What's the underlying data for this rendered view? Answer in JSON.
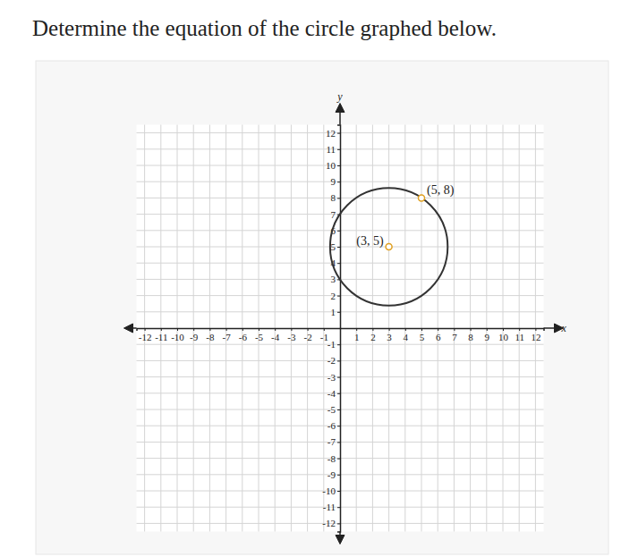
{
  "chart_data": {
    "type": "circle",
    "title": "Determine the equation of the circle graphed below.",
    "x_label": "x",
    "y_label": "y",
    "xlim": [
      -12.5,
      12.5
    ],
    "ylim": [
      -12.5,
      12.5
    ],
    "xticks": [
      -12,
      -11,
      -10,
      -9,
      -8,
      -7,
      -6,
      -5,
      -4,
      -3,
      -2,
      -1,
      1,
      2,
      3,
      4,
      5,
      6,
      7,
      8,
      9,
      10,
      11,
      12
    ],
    "yticks": [
      -12,
      -11,
      -10,
      -9,
      -8,
      -7,
      -6,
      -5,
      -4,
      -3,
      -2,
      -1,
      1,
      2,
      3,
      4,
      5,
      6,
      7,
      8,
      9,
      10,
      11,
      12
    ],
    "grid": true,
    "circle": {
      "cx": 3,
      "cy": 5,
      "r": 3.61,
      "color": "#333333"
    },
    "points": [
      {
        "x": 5,
        "y": 8,
        "label": "(5, 8)"
      },
      {
        "x": 3,
        "y": 5,
        "label": "(3, 5)"
      }
    ],
    "marker": "hollow-circle",
    "color": "#e0a020"
  }
}
